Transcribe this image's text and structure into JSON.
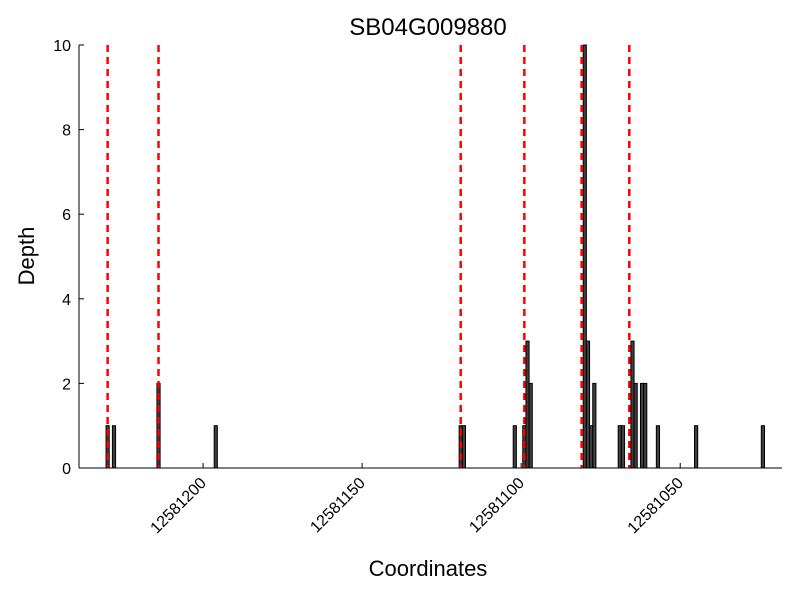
{
  "chart_data": {
    "type": "bar",
    "title": "SB04G009880",
    "xlabel": "Coordinates",
    "ylabel": "Depth",
    "x_reversed": true,
    "xlim": [
      12581239,
      12581018
    ],
    "ylim": [
      0,
      10
    ],
    "yticks": [
      0,
      2,
      4,
      6,
      8,
      10
    ],
    "xticks": [
      12581200,
      12581150,
      12581100,
      12581050
    ],
    "grid": false,
    "bar_color": "#404040",
    "bar_edge_color": "#000000",
    "marker_color": "#ff0000",
    "bars": [
      {
        "x": 12581230,
        "depth": 1
      },
      {
        "x": 12581228,
        "depth": 1
      },
      {
        "x": 12581214,
        "depth": 2
      },
      {
        "x": 12581196,
        "depth": 1
      },
      {
        "x": 12581119,
        "depth": 1
      },
      {
        "x": 12581118,
        "depth": 1
      },
      {
        "x": 12581102,
        "depth": 1
      },
      {
        "x": 12581099,
        "depth": 1
      },
      {
        "x": 12581098,
        "depth": 3
      },
      {
        "x": 12581097,
        "depth": 2
      },
      {
        "x": 12581080,
        "depth": 10
      },
      {
        "x": 12581079,
        "depth": 3
      },
      {
        "x": 12581078,
        "depth": 1
      },
      {
        "x": 12581077,
        "depth": 2
      },
      {
        "x": 12581069,
        "depth": 1
      },
      {
        "x": 12581068,
        "depth": 1
      },
      {
        "x": 12581065,
        "depth": 3
      },
      {
        "x": 12581064,
        "depth": 2
      },
      {
        "x": 12581062,
        "depth": 2
      },
      {
        "x": 12581061,
        "depth": 2
      },
      {
        "x": 12581057,
        "depth": 1
      },
      {
        "x": 12581045,
        "depth": 1
      },
      {
        "x": 12581024,
        "depth": 1
      }
    ],
    "markers": [
      12581230,
      12581214,
      12581119,
      12581099,
      12581081,
      12581066
    ]
  }
}
